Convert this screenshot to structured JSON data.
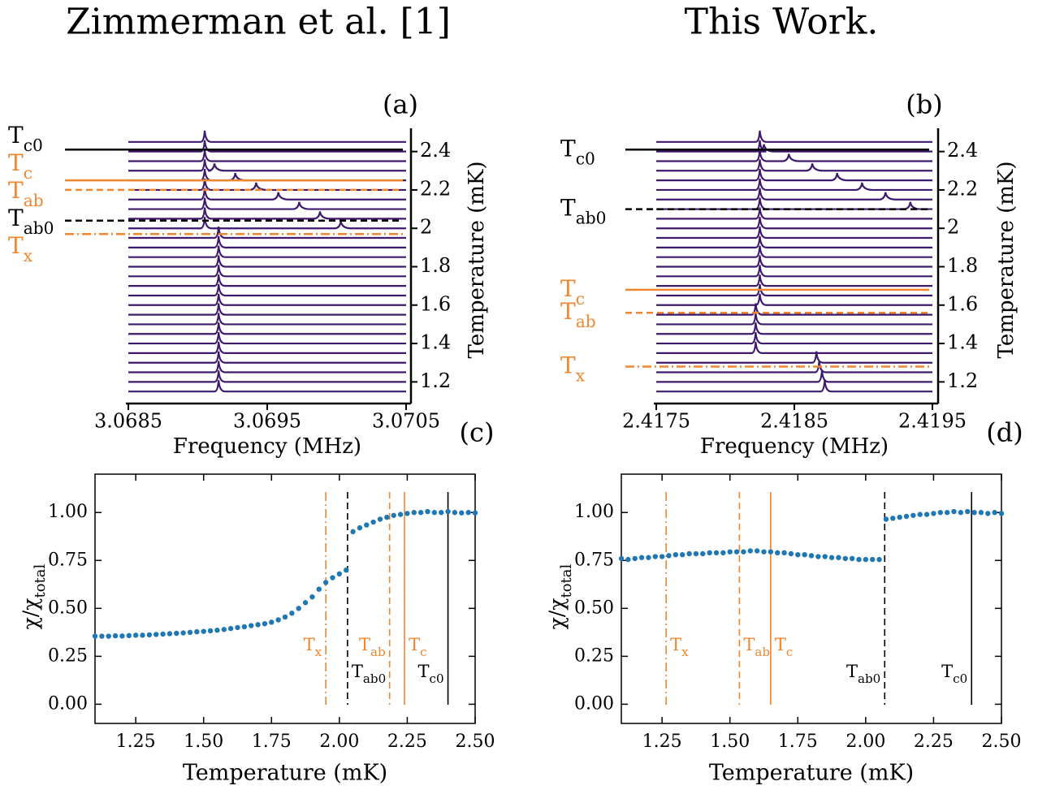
{
  "chart_data": [
    {
      "type": "waterfall",
      "title": "Zimmerman et al. [1]",
      "panel_label": "(a)",
      "xlabel": "Frequency (MHz)",
      "ylabel": "Temperature (mK)",
      "xlim": [
        3.0685,
        3.0705
      ],
      "xticks": [
        3.0685,
        3.0695,
        3.0705
      ],
      "ylim": [
        1.1,
        2.5
      ],
      "yticks": [
        1.2,
        1.4,
        1.6,
        1.8,
        2.0,
        2.2,
        2.4
      ],
      "trace_color": "#3e1a6d",
      "temperature": [
        1.15,
        1.2,
        1.25,
        1.3,
        1.35,
        1.4,
        1.45,
        1.5,
        1.55,
        1.6,
        1.65,
        1.7,
        1.75,
        1.8,
        1.85,
        1.9,
        1.95,
        2.0,
        2.05,
        2.1,
        2.15,
        2.2,
        2.25,
        2.3,
        2.35,
        2.4,
        2.45
      ],
      "peak_frequency": [
        3.06915,
        3.06915,
        3.06915,
        3.06915,
        3.06915,
        3.06915,
        3.06915,
        3.06915,
        3.06915,
        3.06915,
        3.06915,
        3.06915,
        3.06915,
        3.06915,
        3.06915,
        3.06915,
        3.06915,
        3.06905,
        3.06905,
        3.06905,
        3.06905,
        3.06905,
        3.06905,
        3.06905,
        3.06905,
        3.06905,
        3.06905
      ],
      "satellite_frequency": [
        null,
        null,
        null,
        null,
        null,
        null,
        null,
        null,
        null,
        null,
        null,
        null,
        null,
        null,
        null,
        null,
        null,
        3.07003,
        3.06988,
        3.06973,
        3.06958,
        3.06942,
        3.06927,
        3.06912,
        null,
        null,
        null
      ],
      "lines": [
        {
          "value": 2.41,
          "symbol": "T",
          "subscript": "c0",
          "color": "#000000",
          "style": "solid"
        },
        {
          "value": 2.25,
          "symbol": "T",
          "subscript": "c",
          "color": "#f0862e",
          "style": "solid"
        },
        {
          "value": 2.2,
          "symbol": "T",
          "subscript": "ab",
          "color": "#f0862e",
          "style": "dashed"
        },
        {
          "value": 2.04,
          "symbol": "T",
          "subscript": "ab0",
          "color": "#000000",
          "style": "dashed"
        },
        {
          "value": 1.97,
          "symbol": "T",
          "subscript": "x",
          "color": "#f0862e",
          "style": "dashdot"
        }
      ]
    },
    {
      "type": "waterfall",
      "title": "This Work.",
      "panel_label": "(b)",
      "xlabel": "Frequency (MHz)",
      "ylabel": "Temperature (mK)",
      "xlim": [
        2.4175,
        2.4195
      ],
      "xticks": [
        2.4175,
        2.4185,
        2.4195
      ],
      "ylim": [
        1.1,
        2.5
      ],
      "yticks": [
        1.2,
        1.4,
        1.6,
        1.8,
        2.0,
        2.2,
        2.4
      ],
      "trace_color": "#3e1a6d",
      "temperature": [
        1.15,
        1.2,
        1.25,
        1.3,
        1.35,
        1.4,
        1.45,
        1.5,
        1.55,
        1.6,
        1.65,
        1.7,
        1.75,
        1.8,
        1.85,
        1.9,
        1.95,
        2.0,
        2.05,
        2.1,
        2.15,
        2.2,
        2.25,
        2.3,
        2.35,
        2.4,
        2.45
      ],
      "peak_frequency": [
        2.41872,
        2.4187,
        2.41868,
        2.41866,
        2.41822,
        2.41822,
        2.41822,
        2.41822,
        2.41822,
        2.41825,
        2.41825,
        2.41825,
        2.41825,
        2.41825,
        2.41825,
        2.41825,
        2.41825,
        2.41825,
        2.41825,
        2.41825,
        2.41825,
        2.41825,
        2.41825,
        2.41825,
        2.41825,
        2.41825,
        2.41825
      ],
      "satellite_frequency": [
        null,
        null,
        null,
        null,
        null,
        null,
        null,
        null,
        null,
        null,
        null,
        null,
        null,
        null,
        null,
        null,
        null,
        null,
        null,
        2.41934,
        2.41916,
        2.41899,
        2.41881,
        2.41863,
        2.41846,
        2.41828,
        null
      ],
      "lines": [
        {
          "value": 2.41,
          "symbol": "T",
          "subscript": "c0",
          "color": "#000000",
          "style": "solid"
        },
        {
          "value": 2.1,
          "symbol": "T",
          "subscript": "ab0",
          "color": "#000000",
          "style": "dashed"
        },
        {
          "value": 1.68,
          "symbol": "T",
          "subscript": "c",
          "color": "#f0862e",
          "style": "solid"
        },
        {
          "value": 1.56,
          "symbol": "T",
          "subscript": "ab",
          "color": "#f0862e",
          "style": "dashed"
        },
        {
          "value": 1.28,
          "symbol": "T",
          "subscript": "x",
          "color": "#f0862e",
          "style": "dashdot"
        }
      ]
    },
    {
      "type": "scatter",
      "panel_label": "(c)",
      "xlabel": "Temperature (mK)",
      "ylabel": "χ/χ",
      "ylabel_subscript": "total",
      "color": "#1f77b4",
      "xlim": [
        1.1,
        2.5
      ],
      "xticks": [
        1.25,
        {
          "value": 1.5,
          "label": "1.50"
        },
        1.75,
        {
          "value": 2.0,
          "label": "2.00"
        },
        2.25,
        {
          "value": 2.5,
          "label": "2.50"
        }
      ],
      "ylim": [
        -0.1,
        1.2
      ],
      "yticks": [
        {
          "value": 0,
          "label": "0.00"
        },
        0.25,
        {
          "value": 0.5,
          "label": "0.50"
        },
        0.75,
        {
          "value": 1,
          "label": "1.00"
        }
      ],
      "x": [
        1.1,
        1.125,
        1.15,
        1.175,
        1.2,
        1.225,
        1.25,
        1.275,
        1.3,
        1.325,
        1.35,
        1.375,
        1.4,
        1.425,
        1.45,
        1.475,
        1.5,
        1.525,
        1.55,
        1.575,
        1.6,
        1.625,
        1.65,
        1.675,
        1.7,
        1.725,
        1.75,
        1.775,
        1.8,
        1.825,
        1.85,
        1.875,
        1.9,
        1.925,
        1.95,
        1.975,
        2.0,
        2.025,
        2.05,
        2.075,
        2.1,
        2.125,
        2.15,
        2.175,
        2.2,
        2.225,
        2.25,
        2.275,
        2.3,
        2.325,
        2.35,
        2.375,
        2.4,
        2.425,
        2.45,
        2.475,
        2.5
      ],
      "values": [
        0.355,
        0.355,
        0.355,
        0.357,
        0.356,
        0.358,
        0.36,
        0.36,
        0.362,
        0.364,
        0.366,
        0.368,
        0.37,
        0.372,
        0.375,
        0.378,
        0.38,
        0.383,
        0.386,
        0.39,
        0.395,
        0.4,
        0.404,
        0.41,
        0.415,
        0.42,
        0.428,
        0.44,
        0.455,
        0.475,
        0.5,
        0.53,
        0.56,
        0.6,
        0.635,
        0.66,
        0.68,
        0.7,
        0.9,
        0.92,
        0.935,
        0.95,
        0.965,
        0.975,
        0.985,
        0.99,
        0.995,
        1.0,
        1.0,
        1.005,
        1.0,
        1.0,
        1.005,
        1.0,
        0.998,
        1.0,
        0.998
      ],
      "lines": [
        {
          "value": 1.95,
          "symbol": "T",
          "subscript": "x",
          "color": "#f0862e",
          "style": "dashdot"
        },
        {
          "value": 2.03,
          "symbol": "T",
          "subscript": "ab0",
          "color": "#000000",
          "style": "dashed"
        },
        {
          "value": 2.185,
          "symbol": "T",
          "subscript": "ab",
          "color": "#f0862e",
          "style": "dashed"
        },
        {
          "value": 2.24,
          "symbol": "T",
          "subscript": "c",
          "color": "#f0862e",
          "style": "solid"
        },
        {
          "value": 2.4,
          "symbol": "T",
          "subscript": "c0",
          "color": "#000000",
          "style": "solid"
        }
      ]
    },
    {
      "type": "scatter",
      "panel_label": "(d)",
      "xlabel": "Temperature (mK)",
      "ylabel": "χ/χ",
      "ylabel_subscript": "total",
      "color": "#1f77b4",
      "xlim": [
        1.1,
        2.5
      ],
      "xticks": [
        1.25,
        {
          "value": 1.5,
          "label": "1.50"
        },
        1.75,
        {
          "value": 2.0,
          "label": "2.00"
        },
        2.25,
        {
          "value": 2.5,
          "label": "2.50"
        }
      ],
      "ylim": [
        -0.1,
        1.2
      ],
      "yticks": [
        {
          "value": 0,
          "label": "0.00"
        },
        0.25,
        {
          "value": 0.5,
          "label": "0.50"
        },
        0.75,
        {
          "value": 1,
          "label": "1.00"
        }
      ],
      "x": [
        1.1,
        1.125,
        1.15,
        1.175,
        1.2,
        1.225,
        1.25,
        1.275,
        1.3,
        1.325,
        1.35,
        1.375,
        1.4,
        1.425,
        1.45,
        1.475,
        1.5,
        1.525,
        1.55,
        1.575,
        1.6,
        1.625,
        1.65,
        1.675,
        1.7,
        1.725,
        1.75,
        1.775,
        1.8,
        1.825,
        1.85,
        1.875,
        1.9,
        1.925,
        1.95,
        1.975,
        2.0,
        2.025,
        2.05,
        2.075,
        2.1,
        2.125,
        2.15,
        2.175,
        2.2,
        2.225,
        2.25,
        2.275,
        2.3,
        2.325,
        2.35,
        2.375,
        2.4,
        2.425,
        2.45,
        2.475,
        2.5
      ],
      "values": [
        0.76,
        0.755,
        0.76,
        0.765,
        0.765,
        0.77,
        0.77,
        0.775,
        0.78,
        0.78,
        0.785,
        0.785,
        0.785,
        0.79,
        0.79,
        0.79,
        0.795,
        0.795,
        0.795,
        0.8,
        0.8,
        0.795,
        0.795,
        0.79,
        0.79,
        0.785,
        0.78,
        0.78,
        0.775,
        0.77,
        0.77,
        0.765,
        0.765,
        0.76,
        0.76,
        0.755,
        0.755,
        0.755,
        0.755,
        0.965,
        0.97,
        0.975,
        0.98,
        0.985,
        0.99,
        0.99,
        0.995,
        1.0,
        1.0,
        1.005,
        1.0,
        1.005,
        1.0,
        1.0,
        0.995,
        1.0,
        0.995
      ],
      "lines": [
        {
          "value": 1.265,
          "symbol": "T",
          "subscript": "x",
          "color": "#f0862e",
          "style": "dashdot"
        },
        {
          "value": 1.535,
          "symbol": "T",
          "subscript": "ab",
          "color": "#f0862e",
          "style": "dashed"
        },
        {
          "value": 1.65,
          "symbol": "T",
          "subscript": "c",
          "color": "#f0862e",
          "style": "solid"
        },
        {
          "value": 2.07,
          "symbol": "T",
          "subscript": "ab0",
          "color": "#000000",
          "style": "dashed"
        },
        {
          "value": 2.39,
          "symbol": "T",
          "subscript": "c0",
          "color": "#000000",
          "style": "solid"
        }
      ]
    }
  ]
}
